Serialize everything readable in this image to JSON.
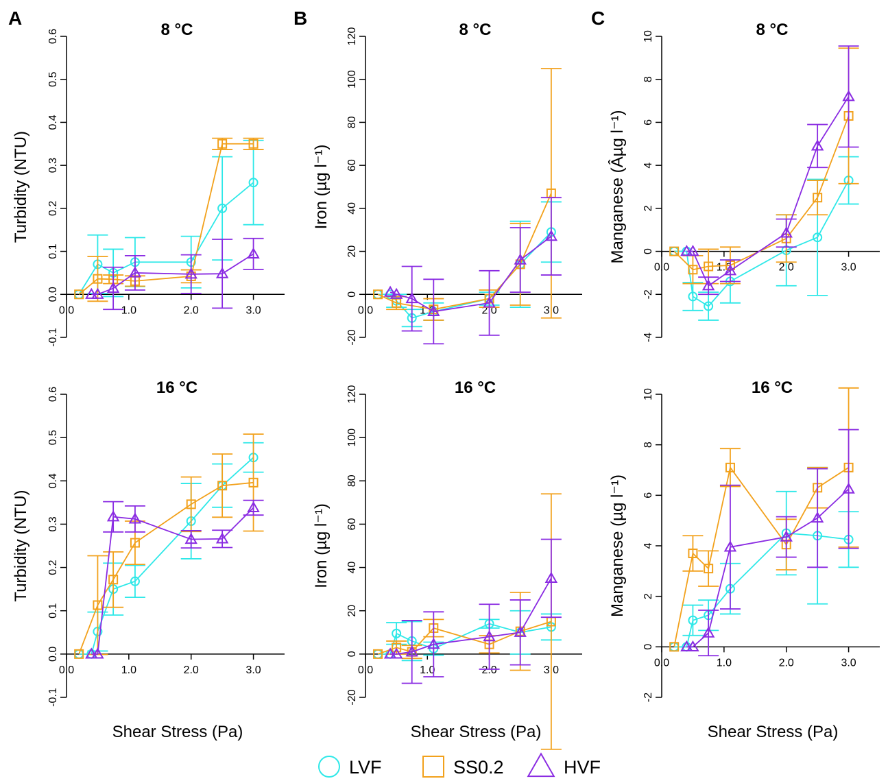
{
  "colors": {
    "LVF": "#2ee8e8",
    "SS0.2": "#f2a11c",
    "HVF": "#8a2be2"
  },
  "legend": [
    {
      "name": "LVF",
      "marker": "circle"
    },
    {
      "name": "SS0.2",
      "marker": "square"
    },
    {
      "name": "HVF",
      "marker": "triangle"
    }
  ],
  "shared_xlabel": "Shear Stress (Pa)",
  "chart_data": [
    {
      "type": "line",
      "panel": "A",
      "title": "8 °C",
      "xlabel": "",
      "ylabel": "Turbidity (NTU)",
      "xlim": [
        0,
        3.5
      ],
      "ylim": [
        -0.1,
        0.6
      ],
      "yticks": [
        -0.1,
        0.0,
        0.1,
        0.2,
        0.3,
        0.4,
        0.5,
        0.6
      ],
      "ytick_labels": [
        "-0.1",
        "0.0",
        "0.1",
        "0.2",
        "0.3",
        "0.4",
        "0.5",
        "0.6"
      ],
      "xticks": [
        0,
        1,
        2,
        3
      ],
      "xtick_labels": [
        "0.0",
        "1.0",
        "2.0",
        "3.0"
      ],
      "zero_line": false,
      "series": [
        {
          "name": "LVF",
          "x": [
            0.2,
            0.5,
            0.75,
            1.1,
            2.0,
            2.5,
            3.0
          ],
          "y": [
            0,
            0.07,
            0.05,
            0.075,
            0.075,
            0.2,
            0.26
          ],
          "err": [
            0,
            0.068,
            0.055,
            0.057,
            0.06,
            0.12,
            0.098
          ]
        },
        {
          "name": "SS0.2",
          "x": [
            0.2,
            0.5,
            0.75,
            1.1,
            2.0,
            2.5,
            3.0
          ],
          "y": [
            0,
            0.036,
            0.035,
            0.031,
            0.042,
            0.35,
            0.35
          ],
          "err": [
            0,
            0.052,
            0.01,
            0.012,
            0.015,
            0.013,
            0.013
          ]
        },
        {
          "name": "HVF",
          "x": [
            0.4,
            0.5,
            0.75,
            1.1,
            2.0,
            2.5,
            3.0
          ],
          "y": [
            0,
            0.0,
            0.014,
            0.05,
            0.047,
            0.048,
            0.094
          ],
          "err": [
            0,
            0,
            0.049,
            0.04,
            0.045,
            0.08,
            0.036
          ]
        }
      ]
    },
    {
      "type": "line",
      "panel": "B",
      "title": "8 °C",
      "xlabel": "",
      "ylabel": "Iron (µg l⁻¹)",
      "xlim": [
        0,
        3.5
      ],
      "ylim": [
        -20,
        120
      ],
      "yticks": [
        -20,
        0,
        20,
        40,
        60,
        80,
        100,
        120
      ],
      "ytick_labels": [
        "-20",
        "0",
        "20",
        "40",
        "60",
        "80",
        "100",
        "120"
      ],
      "xticks": [
        0,
        1,
        2,
        3
      ],
      "xtick_labels": [
        "0.0",
        "1.0",
        "2.0",
        "3.0"
      ],
      "zero_line": true,
      "series": [
        {
          "name": "LVF",
          "x": [
            0.2,
            0.4,
            0.5,
            0.75,
            1.1,
            2.0,
            2.5,
            3.0
          ],
          "y": [
            0,
            0,
            -3,
            -11,
            -8,
            -2,
            14,
            29
          ],
          "err": [
            0,
            0,
            3,
            4,
            4,
            3,
            20,
            14
          ]
        },
        {
          "name": "SS0.2",
          "x": [
            0.2,
            0.5,
            1.1,
            2.0,
            2.5,
            3.0
          ],
          "y": [
            0,
            -4,
            -7,
            -2,
            14,
            47
          ],
          "err": [
            0,
            3,
            5,
            4,
            19,
            58
          ]
        },
        {
          "name": "HVF",
          "x": [
            0.4,
            0.5,
            0.75,
            1.1,
            2.0,
            2.5,
            3.0
          ],
          "y": [
            1,
            0,
            -2,
            -8,
            -4,
            16,
            27
          ],
          "err": [
            0,
            0,
            15,
            15,
            15,
            15,
            18
          ]
        }
      ]
    },
    {
      "type": "line",
      "panel": "C",
      "title": "8 °C",
      "xlabel": "",
      "ylabel": "Manganese (Âµg l⁻¹)",
      "xlim": [
        0,
        3.5
      ],
      "ylim": [
        -4,
        10
      ],
      "yticks": [
        -4,
        -2,
        0,
        2,
        4,
        6,
        8,
        10
      ],
      "ytick_labels": [
        "-4",
        "-2",
        "0",
        "2",
        "4",
        "6",
        "8",
        "10"
      ],
      "xticks": [
        0,
        1,
        2,
        3
      ],
      "xtick_labels": [
        "0.0",
        "1.0",
        "2.0",
        "3.0"
      ],
      "zero_line": true,
      "series": [
        {
          "name": "LVF",
          "x": [
            0.2,
            0.4,
            0.5,
            0.75,
            1.1,
            2.0,
            2.5,
            3.0
          ],
          "y": [
            0,
            0,
            -2.1,
            -2.55,
            -1.4,
            0.05,
            0.65,
            3.3
          ],
          "err": [
            0,
            0,
            0.65,
            0.65,
            1.0,
            1.65,
            2.7,
            1.1
          ]
        },
        {
          "name": "SS0.2",
          "x": [
            0.2,
            0.5,
            0.75,
            1.1,
            2.0,
            2.5,
            3.0
          ],
          "y": [
            0,
            -0.85,
            -0.7,
            -0.65,
            0.6,
            2.5,
            6.3
          ],
          "err": [
            0,
            0.65,
            0.8,
            0.85,
            1.1,
            0.8,
            3.15
          ]
        },
        {
          "name": "HVF",
          "x": [
            0.4,
            0.5,
            0.75,
            1.1,
            2.0,
            2.5,
            3.0
          ],
          "y": [
            0,
            0,
            -1.6,
            -0.9,
            0.85,
            4.9,
            7.2
          ],
          "err": [
            0,
            0,
            0.4,
            0.5,
            0.65,
            1.0,
            2.35
          ]
        }
      ]
    },
    {
      "type": "line",
      "panel": "",
      "title": "16 °C",
      "xlabel": "Shear Stress (Pa)",
      "ylabel": "Turbidity (NTU)",
      "xlim": [
        0,
        3.5
      ],
      "ylim": [
        -0.1,
        0.6
      ],
      "yticks": [
        -0.1,
        0.0,
        0.1,
        0.2,
        0.3,
        0.4,
        0.5,
        0.6
      ],
      "ytick_labels": [
        "-0.1",
        "0.0",
        "0.1",
        "0.2",
        "0.3",
        "0.4",
        "0.5",
        "0.6"
      ],
      "xticks": [
        0,
        1,
        2,
        3
      ],
      "xtick_labels": [
        "0.0",
        "1.0",
        "2.0",
        "3.0"
      ],
      "zero_line": false,
      "series": [
        {
          "name": "LVF",
          "x": [
            0.2,
            0.4,
            0.5,
            0.75,
            1.1,
            2.0,
            2.5,
            3.0
          ],
          "y": [
            0,
            0,
            0.052,
            0.15,
            0.168,
            0.307,
            0.389,
            0.454
          ],
          "err": [
            0,
            0,
            0.045,
            0.06,
            0.037,
            0.087,
            0.05,
            0.034
          ]
        },
        {
          "name": "SS0.2",
          "x": [
            0.2,
            0.5,
            0.75,
            1.1,
            2.0,
            2.5,
            3.0
          ],
          "y": [
            0,
            0.113,
            0.172,
            0.257,
            0.346,
            0.389,
            0.396
          ],
          "err": [
            0,
            0.114,
            0.064,
            0.05,
            0.063,
            0.073,
            0.112
          ]
        },
        {
          "name": "HVF",
          "x": [
            0.4,
            0.5,
            0.75,
            1.1,
            2.0,
            2.5,
            3.0
          ],
          "y": [
            0,
            0,
            0.317,
            0.312,
            0.265,
            0.266,
            0.338
          ],
          "err": [
            0,
            0,
            0.035,
            0.03,
            0.02,
            0.02,
            0.017
          ]
        }
      ]
    },
    {
      "type": "line",
      "panel": "",
      "title": "16 °C",
      "xlabel": "Shear Stress (Pa)",
      "ylabel": "Iron (µg l⁻¹)",
      "xlim": [
        0,
        3.5
      ],
      "ylim": [
        -20,
        120
      ],
      "yticks": [
        -20,
        0,
        20,
        40,
        60,
        80,
        100,
        120
      ],
      "ytick_labels": [
        "-20",
        "0",
        "20",
        "40",
        "60",
        "80",
        "100",
        "120"
      ],
      "xticks": [
        0,
        1,
        2,
        3
      ],
      "xtick_labels": [
        "0.0",
        "1.0",
        "2.0",
        "3.0"
      ],
      "zero_line": true,
      "series": [
        {
          "name": "LVF",
          "x": [
            0.2,
            0.4,
            0.5,
            0.75,
            1.1,
            2.0,
            2.5,
            3.0
          ],
          "y": [
            0,
            0,
            9.5,
            6,
            2.5,
            14,
            10,
            12.5
          ],
          "err": [
            0,
            0,
            5,
            9,
            3,
            2,
            10,
            6
          ]
        },
        {
          "name": "SS0.2",
          "x": [
            0.2,
            0.5,
            0.75,
            1.1,
            2.0,
            2.5,
            3.0
          ],
          "y": [
            0,
            3,
            1,
            12,
            4.5,
            10.5,
            15
          ],
          "err": [
            0,
            3,
            3,
            4,
            4,
            18,
            59
          ]
        },
        {
          "name": "HVF",
          "x": [
            0.4,
            0.5,
            0.75,
            1.1,
            2.0,
            2.5,
            3.0
          ],
          "y": [
            0,
            0,
            1,
            4.5,
            8,
            10,
            35
          ],
          "err": [
            0,
            0,
            14.5,
            15,
            15,
            15,
            18
          ]
        }
      ]
    },
    {
      "type": "line",
      "panel": "",
      "title": "16 °C",
      "xlabel": "Shear Stress (Pa)",
      "ylabel": "Manganese (µg l⁻¹)",
      "xlim": [
        0,
        3.5
      ],
      "ylim": [
        -2,
        10
      ],
      "yticks": [
        -2,
        0,
        2,
        4,
        6,
        8,
        10
      ],
      "ytick_labels": [
        "-2",
        "0",
        "2",
        "4",
        "6",
        "8",
        "10"
      ],
      "xticks": [
        0,
        1,
        2,
        3
      ],
      "xtick_labels": [
        "0.0",
        "1.0",
        "2.0",
        "3.0"
      ],
      "zero_line": true,
      "series": [
        {
          "name": "LVF",
          "x": [
            0.2,
            0.4,
            0.5,
            0.75,
            1.1,
            2.0,
            2.5,
            3.0
          ],
          "y": [
            0,
            0,
            1.05,
            1.25,
            2.3,
            4.5,
            4.4,
            4.25
          ],
          "err": [
            0,
            0,
            0.6,
            0.6,
            1.0,
            1.65,
            2.7,
            1.1
          ]
        },
        {
          "name": "SS0.2",
          "x": [
            0.2,
            0.5,
            0.75,
            1.1,
            2.0,
            2.5,
            3.0
          ],
          "y": [
            0,
            3.7,
            3.1,
            7.1,
            4.05,
            6.3,
            7.1
          ],
          "err": [
            0,
            0.7,
            0.7,
            0.75,
            1.0,
            0.8,
            3.15
          ]
        },
        {
          "name": "HVF",
          "x": [
            0.4,
            0.5,
            0.75,
            1.1,
            2.0,
            2.5,
            3.0
          ],
          "y": [
            0,
            0,
            0.55,
            3.95,
            4.35,
            5.1,
            6.25
          ],
          "err": [
            0,
            0,
            0.9,
            2.45,
            0.8,
            1.95,
            2.35
          ]
        }
      ]
    }
  ]
}
